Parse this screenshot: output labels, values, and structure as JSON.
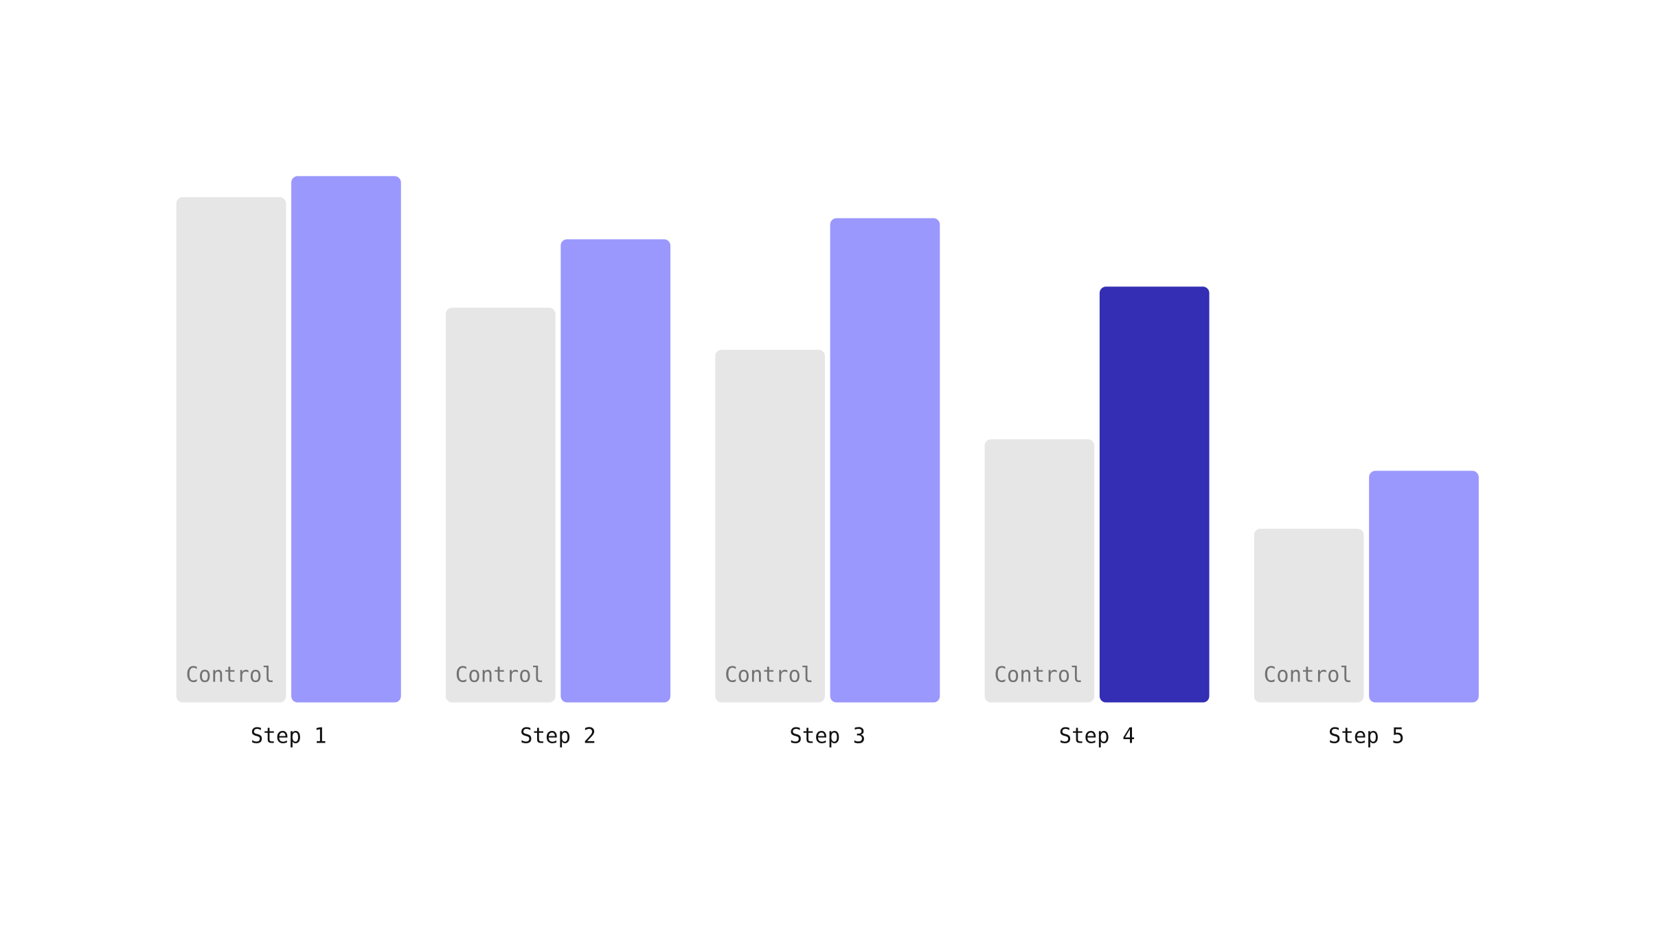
{
  "chart_data": {
    "type": "bar",
    "categories": [
      "Step 1",
      "Step 2",
      "Step 3",
      "Step 4",
      "Step 5"
    ],
    "series": [
      {
        "name": "Control",
        "color": "#e6e6e6",
        "values": [
          96,
          75,
          67,
          50,
          33
        ]
      },
      {
        "colors": [
          "#9a97fd",
          "#9a97fd",
          "#9a97fd",
          "#332eb4",
          "#9a97fd"
        ],
        "values": [
          100,
          88,
          92,
          79,
          44
        ]
      }
    ],
    "ylim": [
      0,
      100
    ]
  }
}
